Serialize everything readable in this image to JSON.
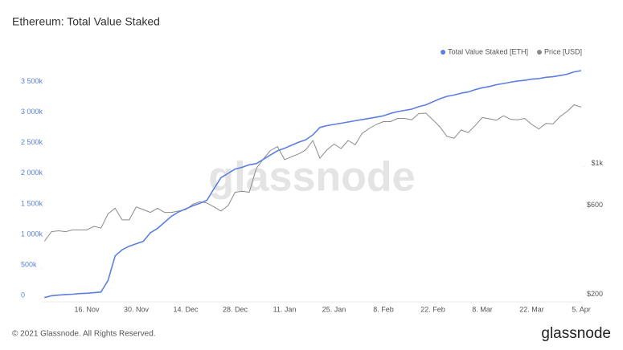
{
  "chart_data": {
    "type": "line",
    "title": "Ethereum: Total Value Staked",
    "watermark": "glassnode",
    "footer": "© 2021 Glassnode. All Rights Reserved.",
    "logo": "glassnode",
    "legend": "top-right",
    "grid": false,
    "categories": [
      null,
      null,
      null,
      null,
      null,
      null,
      "16. Nov",
      null,
      null,
      null,
      null,
      null,
      null,
      "30. Nov",
      null,
      null,
      null,
      null,
      null,
      null,
      "14. Dec",
      null,
      null,
      null,
      null,
      null,
      null,
      "28. Dec",
      null,
      null,
      null,
      null,
      null,
      null,
      "11. Jan",
      null,
      null,
      null,
      null,
      null,
      null,
      "25. Jan",
      null,
      null,
      null,
      null,
      null,
      null,
      "8. Feb",
      null,
      null,
      null,
      null,
      null,
      null,
      "22. Feb",
      null,
      null,
      null,
      null,
      null,
      null,
      "8. Mar",
      null,
      null,
      null,
      null,
      null,
      null,
      "22. Mar",
      null,
      null,
      null,
      null,
      null,
      null,
      "5. Apr"
    ],
    "ylim": [
      -50000,
      3900000
    ],
    "yticks": [
      0,
      {
        "value": 500000,
        "label": "500k"
      },
      {
        "value": 1000000,
        "label": "1 000k"
      },
      {
        "value": 1500000,
        "label": "1 500k"
      },
      {
        "value": 2000000,
        "label": "2 000k"
      },
      {
        "value": 2500000,
        "label": "2 500k"
      },
      {
        "value": 3000000,
        "label": "3 000k"
      },
      {
        "value": 3500000,
        "label": "3 500k"
      }
    ],
    "y2lim": [
      190,
      3700
    ],
    "y2scale": "log",
    "y2ticks": [
      {
        "value": 200,
        "label": "$200"
      },
      {
        "value": 600,
        "label": "$600"
      },
      {
        "value": 1000,
        "label": "$1k"
      }
    ],
    "series": [
      {
        "name": "Total Value Staked [ETH]",
        "color": "#5b7fe0",
        "axis": "y",
        "values": [
          20000,
          50000,
          60000,
          70000,
          75000,
          85000,
          90000,
          100000,
          110000,
          300000,
          700000,
          800000,
          860000,
          900000,
          940000,
          1080000,
          1150000,
          1250000,
          1350000,
          1420000,
          1470000,
          1520000,
          1560000,
          1610000,
          1800000,
          1980000,
          2050000,
          2120000,
          2150000,
          2190000,
          2210000,
          2280000,
          2350000,
          2420000,
          2460000,
          2510000,
          2560000,
          2600000,
          2680000,
          2800000,
          2830000,
          2850000,
          2870000,
          2890000,
          2910000,
          2930000,
          2950000,
          2970000,
          2990000,
          3030000,
          3060000,
          3080000,
          3100000,
          3140000,
          3170000,
          3220000,
          3270000,
          3310000,
          3330000,
          3360000,
          3380000,
          3420000,
          3450000,
          3470000,
          3500000,
          3520000,
          3540000,
          3560000,
          3570000,
          3590000,
          3600000,
          3620000,
          3630000,
          3650000,
          3670000,
          3710000,
          3730000
        ]
      },
      {
        "name": "Price [USD]",
        "color": "#8a8a8a",
        "axis": "y2",
        "values": [
          400,
          450,
          455,
          450,
          460,
          460,
          460,
          480,
          470,
          560,
          600,
          520,
          520,
          610,
          590,
          570,
          600,
          570,
          570,
          580,
          590,
          630,
          650,
          640,
          610,
          580,
          620,
          730,
          740,
          730,
          980,
          1100,
          1220,
          1280,
          1090,
          1130,
          1170,
          1230,
          1380,
          1110,
          1230,
          1320,
          1250,
          1380,
          1310,
          1510,
          1600,
          1680,
          1740,
          1740,
          1810,
          1810,
          1780,
          1920,
          1930,
          1780,
          1630,
          1450,
          1420,
          1570,
          1520,
          1660,
          1830,
          1800,
          1770,
          1870,
          1790,
          1780,
          1810,
          1680,
          1590,
          1700,
          1690,
          1850,
          1970,
          2140,
          2080
        ]
      }
    ]
  }
}
